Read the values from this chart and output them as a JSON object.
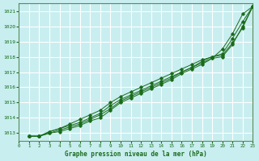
{
  "title": "Graphe pression niveau de la mer (hPa)",
  "background_color": "#c8eef0",
  "grid_color": "#ffffff",
  "line_color": "#1a6b1a",
  "xlim": [
    0,
    23
  ],
  "ylim": [
    1012.5,
    1021.5
  ],
  "yticks": [
    1013,
    1014,
    1015,
    1016,
    1017,
    1018,
    1019,
    1020,
    1021
  ],
  "xticks": [
    0,
    1,
    2,
    3,
    4,
    5,
    6,
    7,
    8,
    9,
    10,
    11,
    12,
    13,
    14,
    15,
    16,
    17,
    18,
    19,
    20,
    21,
    22,
    23
  ],
  "series": [
    [
      1012.8,
      1012.8,
      1013.0,
      1013.1,
      1013.3,
      1013.5,
      1013.8,
      1014.0,
      1014.5,
      1015.0,
      1015.3,
      1015.6,
      1015.9,
      1016.2,
      1016.5,
      1016.9,
      1017.2,
      1017.5,
      1017.9,
      1018.0,
      1018.8,
      1020.0,
      1021.3
    ],
    [
      1012.8,
      1012.8,
      1013.1,
      1013.3,
      1013.6,
      1013.9,
      1014.2,
      1014.5,
      1015.0,
      1015.4,
      1015.7,
      1016.0,
      1016.3,
      1016.6,
      1016.9,
      1017.2,
      1017.5,
      1017.8,
      1018.0,
      1018.2,
      1019.2,
      1020.3,
      1021.3
    ],
    [
      1012.8,
      1012.8,
      1013.1,
      1013.3,
      1013.5,
      1013.7,
      1014.0,
      1014.3,
      1014.8,
      1015.2,
      1015.5,
      1015.8,
      1016.1,
      1016.4,
      1016.7,
      1017.0,
      1017.3,
      1017.7,
      1018.0,
      1018.1,
      1018.9,
      1019.9,
      1021.3
    ],
    [
      1012.8,
      1012.8,
      1013.0,
      1013.2,
      1013.4,
      1013.6,
      1013.9,
      1014.2,
      1014.6,
      1015.1,
      1015.4,
      1015.7,
      1016.0,
      1016.3,
      1016.6,
      1017.0,
      1017.3,
      1017.6,
      1017.9,
      1018.5,
      1019.5,
      1020.8,
      1021.3
    ]
  ]
}
